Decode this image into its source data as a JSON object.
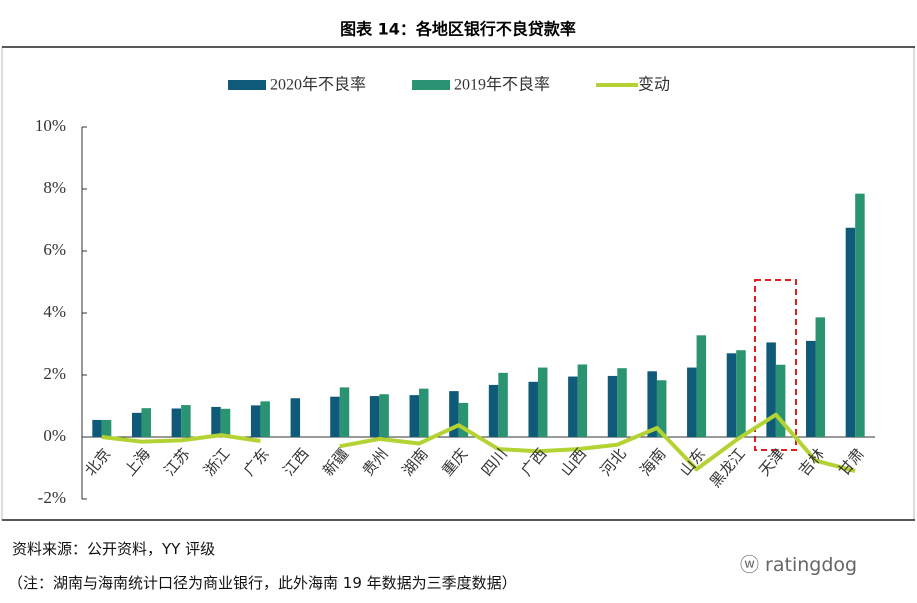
{
  "chart_data": {
    "type": "bar_line",
    "title": "图表 14：各地区银行不良贷款率",
    "categories": [
      "北京",
      "上海",
      "江苏",
      "浙江",
      "广东",
      "江西",
      "新疆",
      "贵州",
      "湖南",
      "重庆",
      "四川",
      "广西",
      "山西",
      "河北",
      "海南",
      "山东",
      "黑龙江",
      "天津",
      "吉林",
      "甘肃"
    ],
    "series": [
      {
        "name": "2020年不良率",
        "type": "bar",
        "color": "#0f5a78",
        "values": [
          0.55,
          0.78,
          0.92,
          0.97,
          1.02,
          1.25,
          1.3,
          1.32,
          1.35,
          1.48,
          1.68,
          1.78,
          1.95,
          1.97,
          2.12,
          2.24,
          2.7,
          3.05,
          3.1,
          6.75
        ]
      },
      {
        "name": "2019年不良率",
        "type": "bar",
        "color": "#2a9472",
        "values": [
          0.55,
          0.93,
          1.03,
          0.91,
          1.15,
          null,
          1.6,
          1.38,
          1.56,
          1.1,
          2.07,
          2.24,
          2.34,
          2.22,
          1.83,
          3.28,
          2.8,
          2.33,
          3.86,
          7.85
        ]
      },
      {
        "name": "变动",
        "type": "line",
        "color": "#b3d334",
        "values": [
          0,
          -0.15,
          -0.11,
          0.06,
          -0.13,
          null,
          -0.3,
          -0.06,
          -0.21,
          0.38,
          -0.39,
          -0.46,
          -0.39,
          -0.25,
          0.29,
          -1.04,
          -0.1,
          0.72,
          -0.76,
          -1.1
        ]
      }
    ],
    "ylim": [
      -2,
      10
    ],
    "yticks": [
      {
        "value": -2,
        "label": "-2%"
      },
      {
        "value": 0,
        "label": "0%"
      },
      {
        "value": 2,
        "label": "2%"
      },
      {
        "value": 4,
        "label": "4%"
      },
      {
        "value": 6,
        "label": "6%"
      },
      {
        "value": 8,
        "label": "8%"
      },
      {
        "value": 10,
        "label": "10%"
      }
    ],
    "grid": false,
    "legend": "top"
  },
  "footer": {
    "source": "资料来源：公开资料，YY 评级",
    "note": "（注：湖南与海南统计口径为商业银行，此外海南 19 年数据为三季度数据）",
    "watermark": "ratingdog"
  }
}
